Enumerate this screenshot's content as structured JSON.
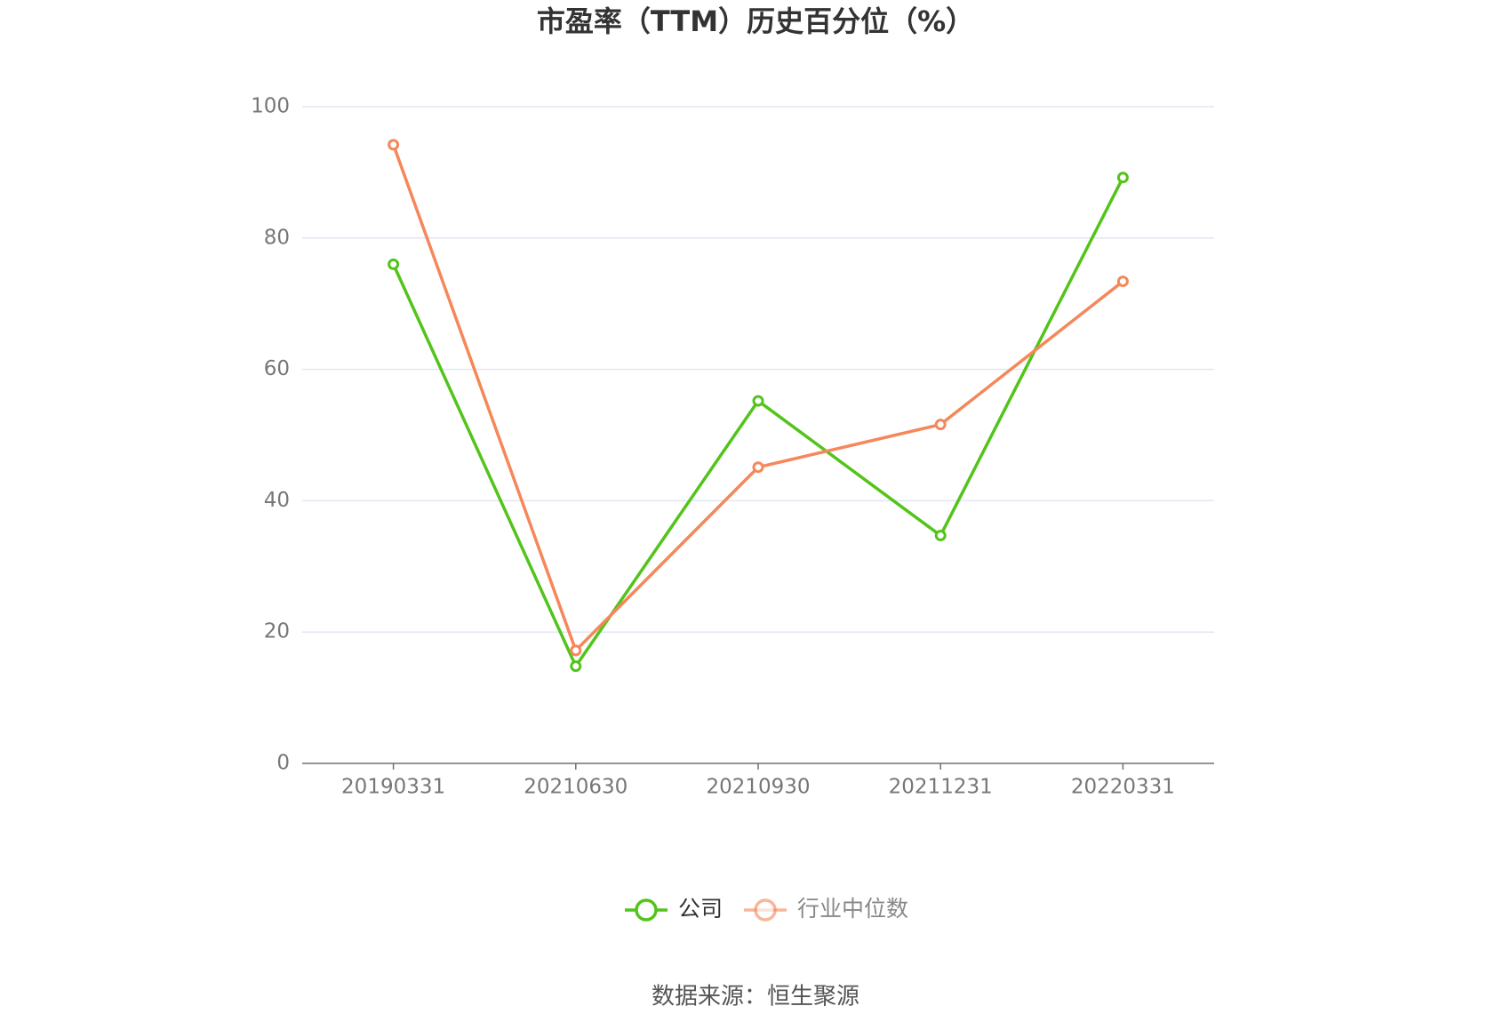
{
  "chart_data": {
    "type": "line",
    "title": "市盈率（TTM）历史百分位（%）",
    "categories": [
      "20190331",
      "20210630",
      "20210930",
      "20211231",
      "20220331"
    ],
    "series": [
      {
        "name": "公司",
        "color": "#52c41a",
        "values": [
          76.0,
          14.8,
          55.2,
          34.7,
          89.2
        ]
      },
      {
        "name": "行业中位数",
        "color": "#f5875a",
        "values": [
          94.2,
          17.2,
          45.1,
          51.6,
          73.4
        ]
      }
    ],
    "ylim": [
      0,
      100
    ],
    "yticks": [
      0,
      20,
      40,
      60,
      80,
      100
    ],
    "grid": true,
    "legend": "bottom",
    "source": "数据来源：恒生聚源"
  }
}
